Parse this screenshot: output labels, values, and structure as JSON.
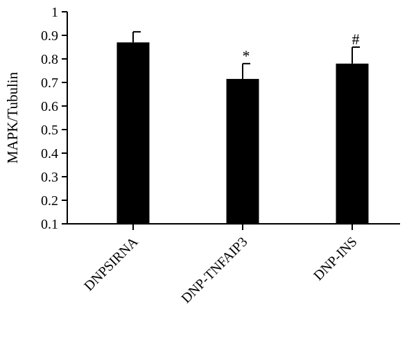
{
  "chart_data": {
    "type": "bar",
    "title": "",
    "xlabel": "",
    "ylabel": "MAPK/Tubulin",
    "ylim": [
      0.1,
      1
    ],
    "yticks": [
      0.1,
      0.2,
      0.3,
      0.4,
      0.5,
      0.6,
      0.7,
      0.8,
      0.9,
      1
    ],
    "ytick_labels": [
      "0.1",
      "0.2",
      "0.3",
      "0.4",
      "0.5",
      "0.6",
      "0.7",
      "0.8",
      "0.9",
      "1"
    ],
    "categories": [
      "DNPSIRNA",
      "DNP-TNFAIP3",
      "DNP-INS"
    ],
    "values": [
      0.87,
      0.715,
      0.78
    ],
    "errors": [
      0.045,
      0.065,
      0.07
    ],
    "annotations": [
      "",
      "*",
      "#"
    ],
    "bar_color": "#000000",
    "grid": false,
    "legend": "none"
  }
}
